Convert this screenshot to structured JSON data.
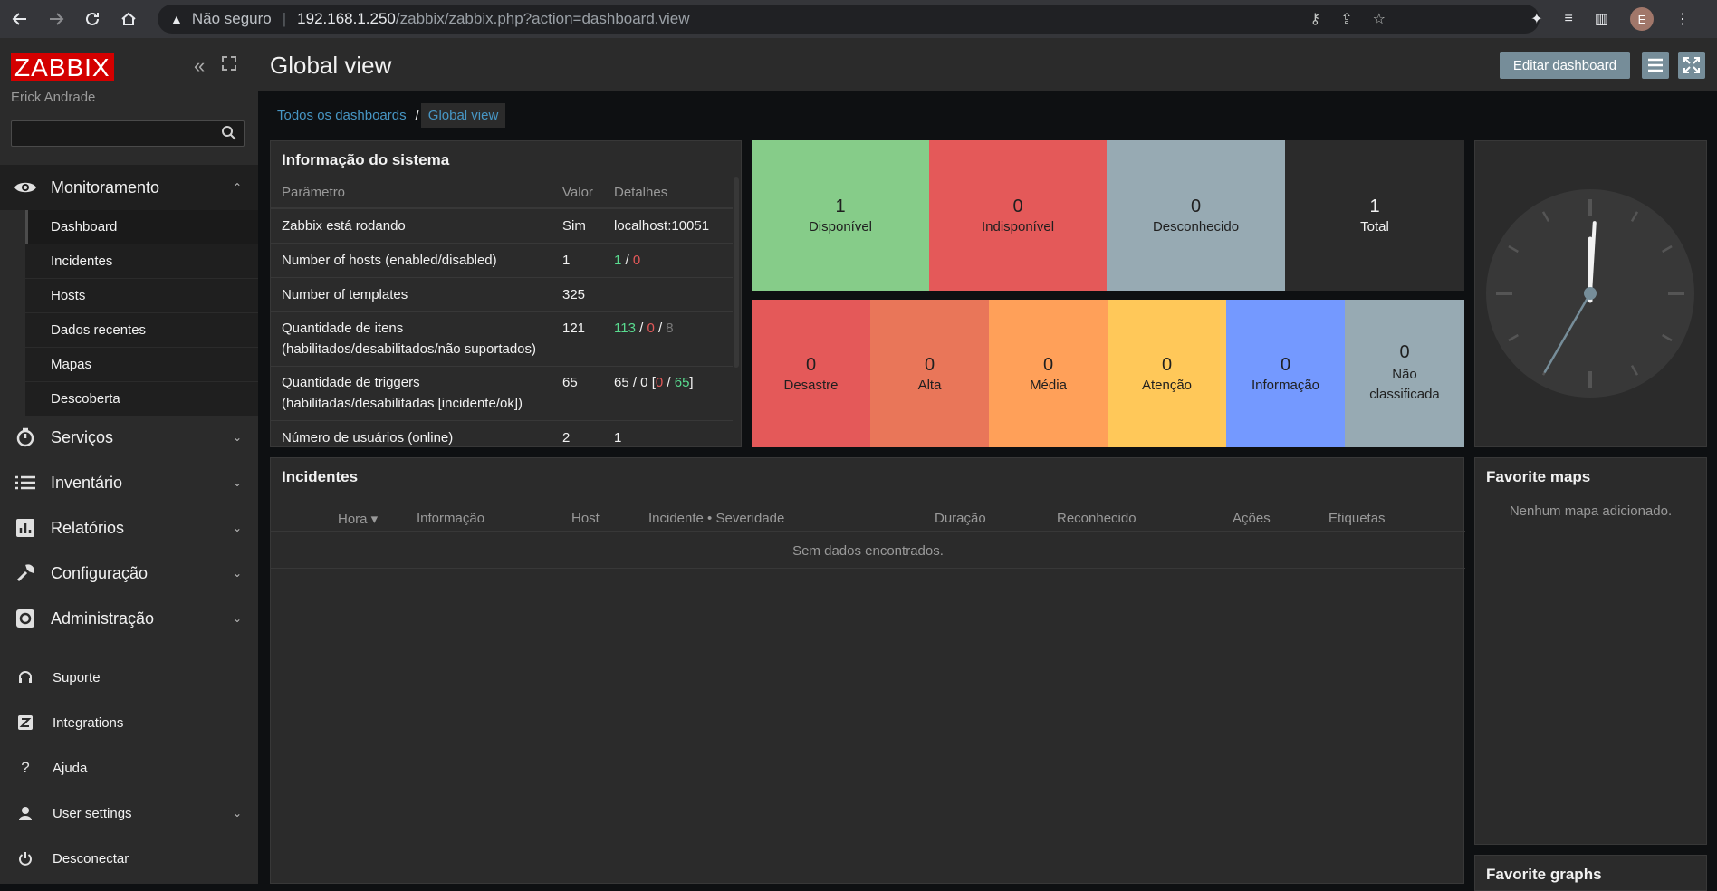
{
  "browser": {
    "warning_label": "Não seguro",
    "url_host": "192.168.1.250",
    "url_path": "/zabbix/zabbix.php?action=dashboard.view",
    "avatar_initial": "E"
  },
  "sidebar": {
    "logo": "ZABBIX",
    "user": "Erick Andrade",
    "search_placeholder": "",
    "monitoring": {
      "label": "Monitoramento",
      "items": [
        "Dashboard",
        "Incidentes",
        "Hosts",
        "Dados recentes",
        "Mapas",
        "Descoberta"
      ]
    },
    "sections": [
      "Serviços",
      "Inventário",
      "Relatórios",
      "Configuração",
      "Administração"
    ],
    "bottom": [
      "Suporte",
      "Integrations",
      "Ajuda",
      "User settings",
      "Desconectar"
    ]
  },
  "header": {
    "title": "Global view",
    "edit_button": "Editar dashboard"
  },
  "breadcrumb": {
    "all": "Todos os dashboards",
    "separator": "/",
    "current": "Global view"
  },
  "system_info": {
    "title": "Informação do sistema",
    "columns": [
      "Parâmetro",
      "Valor",
      "Detalhes"
    ],
    "rows": [
      {
        "param": "Zabbix está rodando",
        "value": "Sim",
        "details": "localhost:10051"
      },
      {
        "param": "Number of hosts (enabled/disabled)",
        "value": "1",
        "d1": "1",
        "d2": "0"
      },
      {
        "param": "Number of templates",
        "value": "325",
        "details": ""
      },
      {
        "param_line1": "Quantidade de itens",
        "param_line2": "(habilitados/desabilitados/não suportados)",
        "value": "121",
        "d1": "113",
        "d2": "0",
        "d3": "8"
      },
      {
        "param_line1": "Quantidade de triggers",
        "param_line2": "(habilitadas/desabilitadas [incidente/ok])",
        "value": "65",
        "d_prefix": "65 / 0 [",
        "d1": "0",
        "d2": "65",
        "d_suffix": "]"
      },
      {
        "param": "Número de usuários (online)",
        "value": "2",
        "d1": "1"
      }
    ]
  },
  "host_availability": [
    {
      "count": "1",
      "label": "Disponível",
      "color": "#86cc89"
    },
    {
      "count": "0",
      "label": "Indisponível",
      "color": "#e45959"
    },
    {
      "count": "0",
      "label": "Desconhecido",
      "color": "#97aab3"
    },
    {
      "count": "1",
      "label": "Total",
      "color": "#2b2b2b"
    }
  ],
  "problems_by_severity": [
    {
      "count": "0",
      "label": "Desastre",
      "color": "#e45959"
    },
    {
      "count": "0",
      "label": "Alta",
      "color": "#e97659"
    },
    {
      "count": "0",
      "label": "Média",
      "color": "#ffa059"
    },
    {
      "count": "0",
      "label": "Atenção",
      "color": "#ffc859"
    },
    {
      "count": "0",
      "label": "Informação",
      "color": "#7499ff"
    },
    {
      "count": "0",
      "label": "Não classificada",
      "color": "#97aab3"
    }
  ],
  "clock": {
    "hour": 12,
    "minute": 0,
    "second": 35
  },
  "incidents": {
    "title": "Incidentes",
    "columns": [
      "Hora ▾",
      "Informação",
      "Host",
      "Incidente • Severidade",
      "Duração",
      "Reconhecido",
      "Ações",
      "Etiquetas"
    ],
    "empty": "Sem dados encontrados."
  },
  "favorite_maps": {
    "title": "Favorite maps",
    "empty": "Nenhum mapa adicionado."
  },
  "favorite_graphs": {
    "title": "Favorite graphs"
  }
}
